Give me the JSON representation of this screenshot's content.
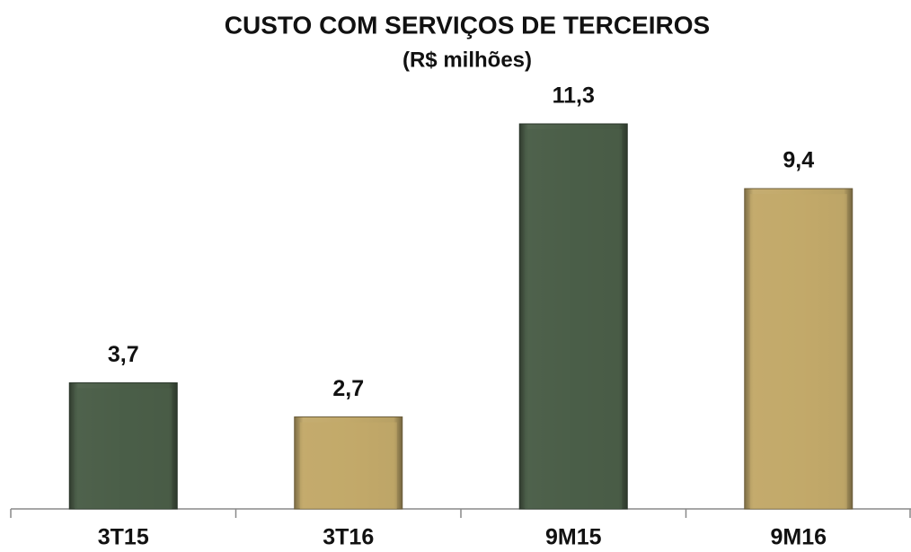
{
  "chart_data": {
    "type": "bar",
    "title": "CUSTO COM SERVIÇOS DE TERCEIROS",
    "subtitle": "(R$ milhões)",
    "categories": [
      "3T15",
      "3T16",
      "9M15",
      "9M16"
    ],
    "values": [
      3.7,
      2.7,
      11.3,
      9.4
    ],
    "value_labels": [
      "3,7",
      "2,7",
      "11,3",
      "9,4"
    ],
    "colors": [
      "#4b5e48",
      "#c2a96a",
      "#4b5e48",
      "#c2a96a"
    ],
    "grid": false
  }
}
